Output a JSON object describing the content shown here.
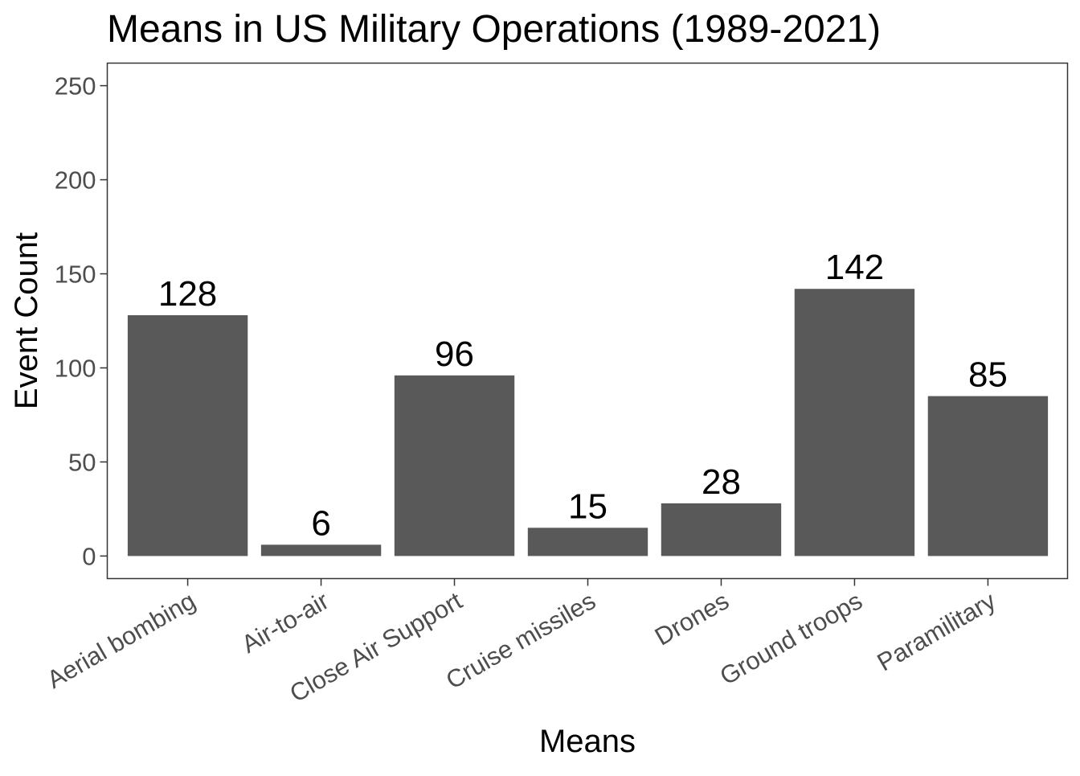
{
  "chart_data": {
    "type": "bar",
    "title": "Means in US Military Operations (1989-2021)",
    "xlabel": "Means",
    "ylabel": "Event Count",
    "categories": [
      "Aerial bombing",
      "Air-to-air",
      "Close Air Support",
      "Cruise missiles",
      "Drones",
      "Ground troops",
      "Paramilitary"
    ],
    "values": [
      128,
      6,
      96,
      15,
      28,
      142,
      85
    ],
    "data_labels": [
      "128",
      "6",
      "96",
      "15",
      "28",
      "142",
      "85"
    ],
    "yticks": [
      0,
      50,
      100,
      150,
      200,
      250
    ],
    "ytick_labels": [
      "0",
      "50",
      "100",
      "150",
      "200",
      "250"
    ],
    "ylim": [
      -12,
      262
    ],
    "grid": false,
    "legend": "none",
    "colors": {
      "bar": "#595959",
      "panel_border": "#333333",
      "tick_label": "#4d4d4d",
      "text": "#000000",
      "background": "#ffffff"
    }
  }
}
